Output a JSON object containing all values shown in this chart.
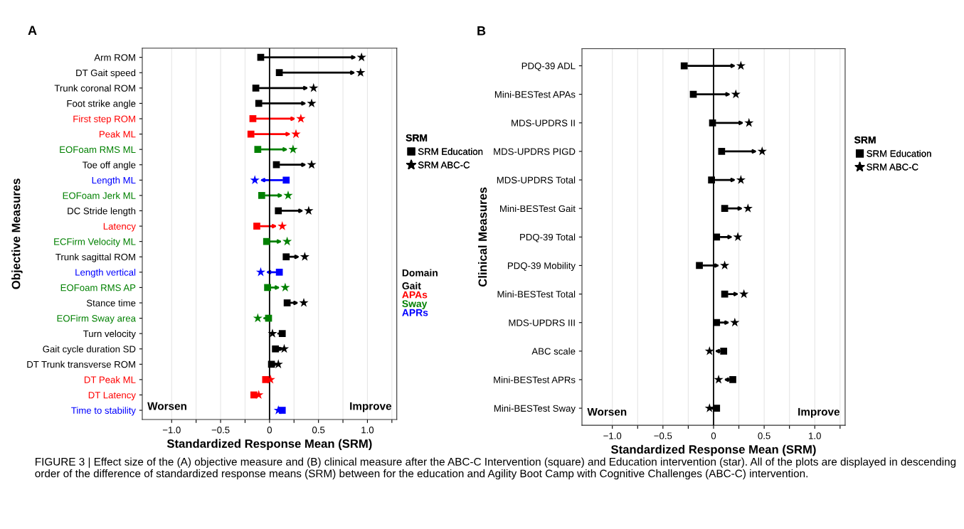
{
  "chart_data": [
    {
      "type": "scatter",
      "title": "A",
      "xlabel": "Standardized Response Mean (SRM)",
      "ylabel": "Objective Measures",
      "orientation": "horizontal",
      "legend_title": "SRM",
      "legend": "right",
      "grid": "x",
      "xlim": [
        -1.3,
        1.3
      ],
      "xticks": [
        {
          "value": -1.0,
          "label": "−1.0"
        },
        {
          "value": -0.75,
          "label": null
        },
        {
          "value": -0.5,
          "label": "−0.5"
        },
        {
          "value": -0.25,
          "label": null
        },
        0,
        {
          "value": 0.25,
          "label": null
        },
        0.5,
        {
          "value": 0.75,
          "label": null
        },
        {
          "value": 1.0,
          "label": "1.0"
        },
        {
          "value": 1.25,
          "label": null
        }
      ],
      "categories": [
        "Arm ROM",
        "DT Gait speed",
        "Trunk coronal ROM",
        "Foot strike angle",
        "First step ROM",
        "Peak ML",
        "EOFoam RMS ML",
        "Toe off angle",
        "Length ML",
        "EOFoam Jerk ML",
        "DC Stride length",
        "Latency",
        "ECFirm Velocity ML",
        "Trunk sagittal ROM",
        "Length vertical",
        "EOFoam RMS AP",
        "Stance time",
        "EOFirm Sway area",
        "Turn velocity",
        "Gait cycle duration SD",
        "DT Trunk transverse ROM",
        "DT Peak ML",
        "DT Latency",
        "Time to stability"
      ],
      "series": [
        {
          "name": "SRM Education",
          "marker": "square",
          "color": "#000000",
          "colors": [
            "#000000",
            "#000000",
            "#000000",
            "#000000",
            "#ff0000",
            "#ff0000",
            "#008000",
            "#000000",
            "#0000ff",
            "#008000",
            "#000000",
            "#ff0000",
            "#008000",
            "#000000",
            "#0000ff",
            "#008000",
            "#000000",
            "#008000",
            "#000000",
            "#000000",
            "#000000",
            "#ff0000",
            "#ff0000",
            "#0000ff"
          ],
          "values": [
            -0.09,
            0.1,
            -0.14,
            -0.11,
            -0.17,
            -0.19,
            -0.12,
            0.07,
            0.17,
            -0.08,
            0.09,
            -0.13,
            -0.03,
            0.17,
            0.1,
            -0.02,
            0.18,
            -0.01,
            0.13,
            0.06,
            0.02,
            -0.04,
            -0.16,
            0.13
          ]
        },
        {
          "name": "SRM ABC-C",
          "marker": "star",
          "color": "#000000",
          "colors": [
            "#000000",
            "#000000",
            "#000000",
            "#000000",
            "#ff0000",
            "#ff0000",
            "#008000",
            "#000000",
            "#0000ff",
            "#008000",
            "#000000",
            "#ff0000",
            "#008000",
            "#000000",
            "#0000ff",
            "#008000",
            "#000000",
            "#008000",
            "#000000",
            "#000000",
            "#000000",
            "#ff0000",
            "#ff0000",
            "#0000ff"
          ],
          "values": [
            0.94,
            0.93,
            0.45,
            0.43,
            0.32,
            0.27,
            0.24,
            0.43,
            -0.15,
            0.19,
            0.4,
            0.13,
            0.18,
            0.36,
            -0.09,
            0.16,
            0.35,
            -0.12,
            0.03,
            0.15,
            0.09,
            0.01,
            -0.11,
            0.09
          ]
        }
      ],
      "ref_lines": [
        {
          "axis": "x",
          "value": 0,
          "color": "#000000"
        }
      ],
      "annotations": [
        "Worsen",
        "Improve",
        "Domain",
        "Gait",
        "APAs",
        "Sway",
        "APRs"
      ]
    },
    {
      "type": "scatter",
      "title": "B",
      "xlabel": "Standardized Response Mean (SRM)",
      "ylabel": "Clinical Measures",
      "orientation": "horizontal",
      "legend_title": "SRM",
      "legend": "right",
      "grid": "x",
      "xlim": [
        -1.3,
        1.3
      ],
      "xticks": [
        {
          "value": -1.0,
          "label": "−1.0"
        },
        {
          "value": -0.75,
          "label": null
        },
        {
          "value": -0.5,
          "label": "−0.5"
        },
        {
          "value": -0.25,
          "label": null
        },
        0,
        {
          "value": 0.25,
          "label": null
        },
        0.5,
        {
          "value": 0.75,
          "label": null
        },
        {
          "value": 1.0,
          "label": "1.0"
        },
        {
          "value": 1.25,
          "label": null
        }
      ],
      "categories": [
        "PDQ-39 ADL",
        "Mini-BESTest APAs",
        "MDS-UPDRS II",
        "MDS-UPDRS PIGD",
        "MDS-UPDRS Total",
        "Mini-BESTest Gait",
        "PDQ-39 Total",
        "PDQ-39 Mobility",
        "Mini-BESTest Total",
        "MDS-UPDRS III",
        "ABC scale",
        "Mini-BESTest APRs",
        "Mini-BESTest Sway"
      ],
      "series": [
        {
          "name": "SRM Education",
          "marker": "square",
          "color": "#000000",
          "values": [
            -0.29,
            -0.2,
            -0.01,
            0.08,
            -0.02,
            0.11,
            0.03,
            -0.14,
            0.11,
            0.03,
            0.1,
            0.19,
            0.03
          ]
        },
        {
          "name": "SRM ABC-C",
          "marker": "star",
          "color": "#000000",
          "values": [
            0.27,
            0.22,
            0.35,
            0.48,
            0.27,
            0.34,
            0.24,
            0.11,
            0.3,
            0.21,
            -0.04,
            0.05,
            -0.04
          ]
        }
      ],
      "ref_lines": [
        {
          "axis": "x",
          "value": 0,
          "color": "#000000"
        }
      ],
      "annotations": [
        "Worsen",
        "Improve",
        "FIGURE 3 | Effect size of the (A) objective measure and (B) clinical measure after the ABC-C Intervention (square) and Education intervention (star). All of the plots are displayed in descending order of the difference of standardized response means (SRM) between for the education and Agility Boot Camp with Cognitive Challenges (ABC-C) intervention."
      ]
    }
  ]
}
